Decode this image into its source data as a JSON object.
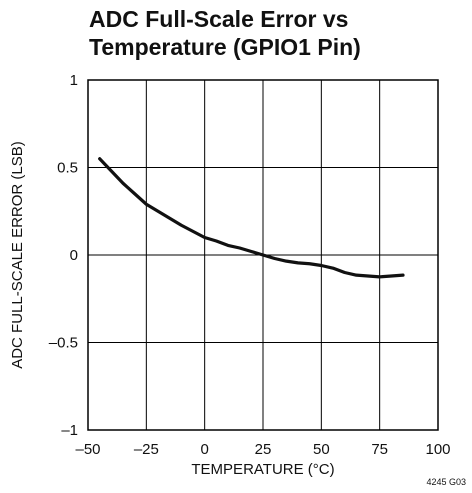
{
  "chart_data": {
    "type": "line",
    "title_lines": [
      "ADC Full-Scale Error vs",
      "Temperature (GPIO1 Pin)"
    ],
    "xlabel": "TEMPERATURE (°C)",
    "ylabel": "ADC FULL-SCALE ERROR (LSB)",
    "xlim": [
      -50,
      100
    ],
    "ylim": [
      -1,
      1
    ],
    "x_ticks": [
      -50,
      -25,
      0,
      25,
      50,
      75,
      100
    ],
    "y_ticks": [
      -1,
      -0.5,
      0,
      0.5,
      1
    ],
    "x_tick_labels": [
      "–50",
      "–25",
      "0",
      "25",
      "50",
      "75",
      "100"
    ],
    "y_tick_labels": [
      "–1",
      "–0.5",
      "0",
      "0.5",
      "1"
    ],
    "grid": true,
    "figure_code": "4245 G03",
    "series": [
      {
        "x": [
          -45,
          -40,
          -35,
          -30,
          -25,
          -20,
          -15,
          -10,
          -5,
          0,
          5,
          10,
          15,
          20,
          25,
          30,
          35,
          40,
          45,
          50,
          55,
          60,
          65,
          70,
          75,
          80,
          85
        ],
        "y": [
          0.55,
          0.48,
          0.41,
          0.35,
          0.29,
          0.25,
          0.21,
          0.17,
          0.135,
          0.1,
          0.08,
          0.055,
          0.04,
          0.02,
          0.0,
          -0.02,
          -0.035,
          -0.045,
          -0.05,
          -0.06,
          -0.075,
          -0.1,
          -0.115,
          -0.12,
          -0.125,
          -0.12,
          -0.115
        ]
      }
    ]
  }
}
